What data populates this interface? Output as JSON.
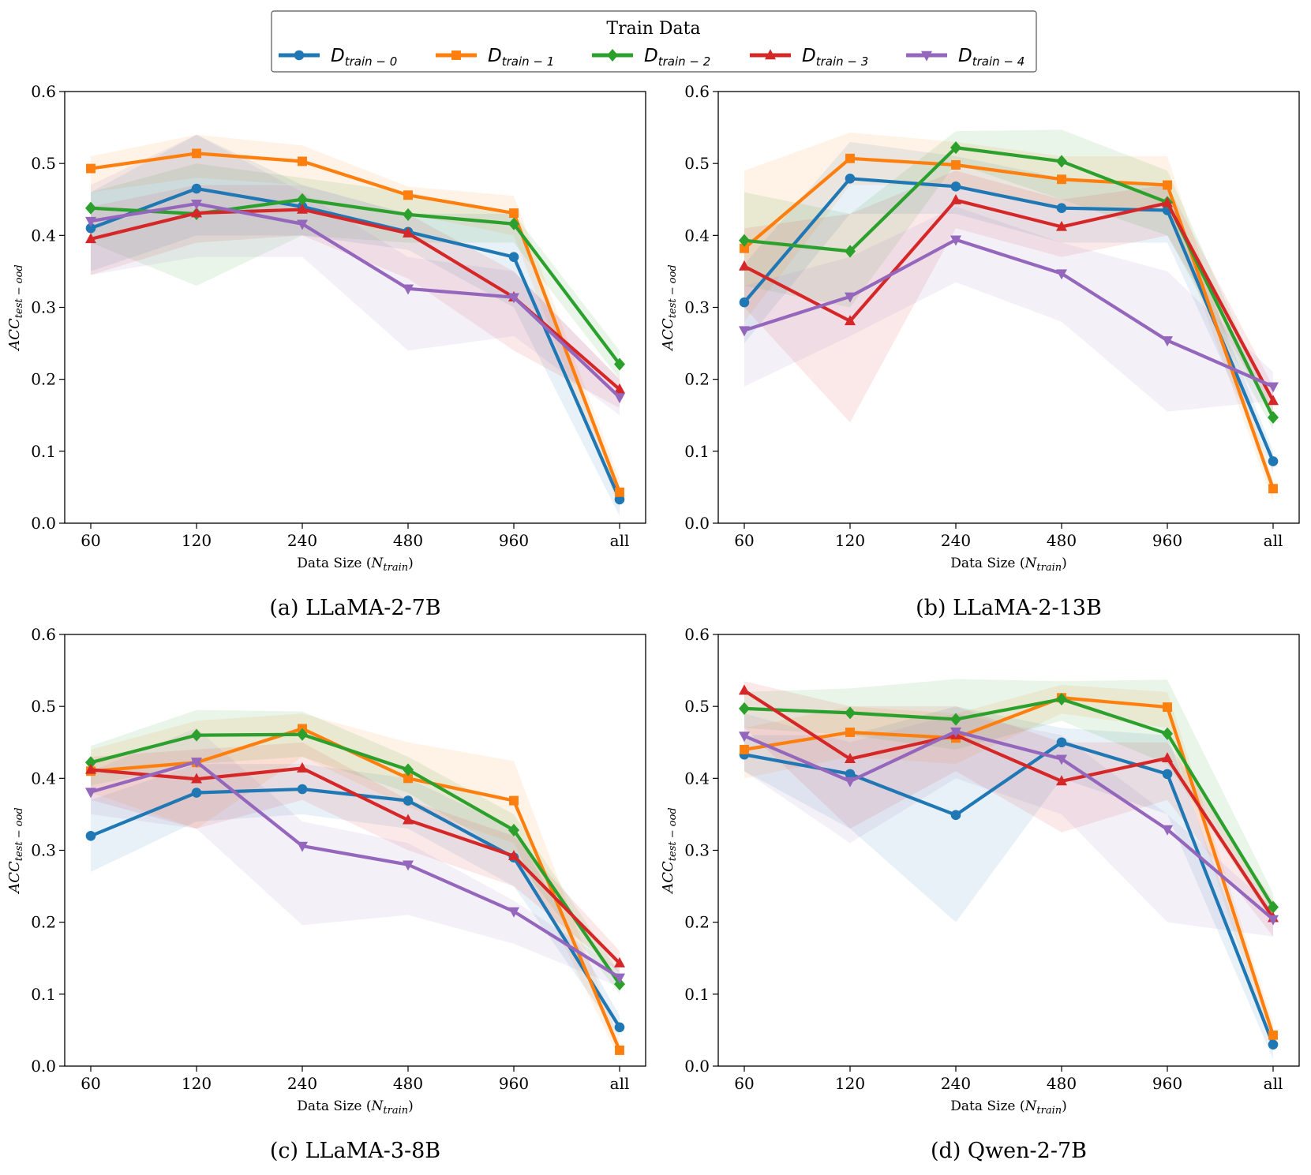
{
  "legend": {
    "title": "Train Data",
    "entries": [
      {
        "main": "D",
        "sub": "train − 0",
        "color": "#1f77b4",
        "marker": "circle"
      },
      {
        "main": "D",
        "sub": "train − 1",
        "color": "#ff7f0e",
        "marker": "square"
      },
      {
        "main": "D",
        "sub": "train − 2",
        "color": "#2ca02c",
        "marker": "diamond"
      },
      {
        "main": "D",
        "sub": "train − 3",
        "color": "#d62728",
        "marker": "triangle-up"
      },
      {
        "main": "D",
        "sub": "train − 4",
        "color": "#9467bd",
        "marker": "triangle-down"
      }
    ]
  },
  "chart_data": [
    {
      "type": "line",
      "title": "(a) LLaMA-2-7B",
      "xlabel": {
        "main": "Data Size (",
        "italic": "N",
        "sub": "train",
        "tail": ")"
      },
      "ylabel": {
        "main": "ACC",
        "sub": "test − ood"
      },
      "categories": [
        "60",
        "120",
        "240",
        "480",
        "960",
        "all"
      ],
      "ylim": [
        0,
        0.6
      ],
      "yticks": [
        "0.0",
        "0.1",
        "0.2",
        "0.3",
        "0.4",
        "0.5",
        "0.6"
      ],
      "series": [
        {
          "name": "D train-0",
          "values": [
            0.41,
            0.465,
            0.44,
            0.405,
            0.37,
            0.033
          ],
          "lower": [
            0.35,
            0.4,
            0.4,
            0.38,
            0.3,
            0.01
          ],
          "upper": [
            0.46,
            0.54,
            0.47,
            0.43,
            0.43,
            0.05
          ]
        },
        {
          "name": "D train-1",
          "values": [
            0.493,
            0.514,
            0.503,
            0.456,
            0.431,
            0.043
          ],
          "lower": [
            0.46,
            0.48,
            0.47,
            0.43,
            0.4,
            0.02
          ],
          "upper": [
            0.51,
            0.54,
            0.525,
            0.468,
            0.455,
            0.06
          ]
        },
        {
          "name": "D train-2",
          "values": [
            0.438,
            0.43,
            0.45,
            0.429,
            0.416,
            0.221
          ],
          "lower": [
            0.39,
            0.33,
            0.4,
            0.39,
            0.39,
            0.2
          ],
          "upper": [
            0.46,
            0.5,
            0.48,
            0.46,
            0.43,
            0.24
          ]
        },
        {
          "name": "D train-3",
          "values": [
            0.395,
            0.431,
            0.436,
            0.403,
            0.314,
            0.186
          ],
          "lower": [
            0.345,
            0.39,
            0.4,
            0.34,
            0.24,
            0.16
          ],
          "upper": [
            0.44,
            0.47,
            0.47,
            0.43,
            0.35,
            0.2
          ]
        },
        {
          "name": "D train-4",
          "values": [
            0.42,
            0.444,
            0.416,
            0.326,
            0.314,
            0.175
          ],
          "lower": [
            0.345,
            0.37,
            0.37,
            0.24,
            0.26,
            0.15
          ],
          "upper": [
            0.47,
            0.54,
            0.46,
            0.37,
            0.35,
            0.2
          ]
        }
      ]
    },
    {
      "type": "line",
      "title": "(b) LLaMA-2-13B",
      "xlabel": {
        "main": "Data Size (",
        "italic": "N",
        "sub": "train",
        "tail": ")"
      },
      "ylabel": {
        "main": "ACC",
        "sub": "test − ood"
      },
      "categories": [
        "60",
        "120",
        "240",
        "480",
        "960",
        "all"
      ],
      "ylim": [
        0,
        0.6
      ],
      "yticks": [
        "0.0",
        "0.1",
        "0.2",
        "0.3",
        "0.4",
        "0.5",
        "0.6"
      ],
      "series": [
        {
          "name": "D train-0",
          "values": [
            0.307,
            0.479,
            0.468,
            0.438,
            0.435,
            0.086
          ],
          "lower": [
            0.25,
            0.43,
            0.43,
            0.39,
            0.39,
            0.07
          ],
          "upper": [
            0.36,
            0.53,
            0.51,
            0.48,
            0.47,
            0.1
          ]
        },
        {
          "name": "D train-1",
          "values": [
            0.382,
            0.507,
            0.498,
            0.478,
            0.47,
            0.048
          ],
          "lower": [
            0.28,
            0.47,
            0.47,
            0.44,
            0.44,
            0.03
          ],
          "upper": [
            0.49,
            0.543,
            0.53,
            0.51,
            0.51,
            0.06
          ]
        },
        {
          "name": "D train-2",
          "values": [
            0.393,
            0.378,
            0.522,
            0.503,
            0.446,
            0.147
          ],
          "lower": [
            0.33,
            0.3,
            0.5,
            0.45,
            0.4,
            0.13
          ],
          "upper": [
            0.46,
            0.43,
            0.545,
            0.547,
            0.49,
            0.16
          ]
        },
        {
          "name": "D train-3",
          "values": [
            0.357,
            0.281,
            0.449,
            0.412,
            0.445,
            0.17
          ],
          "lower": [
            0.3,
            0.14,
            0.41,
            0.37,
            0.4,
            0.15
          ],
          "upper": [
            0.41,
            0.43,
            0.49,
            0.45,
            0.47,
            0.19
          ]
        },
        {
          "name": "D train-4",
          "values": [
            0.268,
            0.315,
            0.394,
            0.347,
            0.254,
            0.19
          ],
          "lower": [
            0.19,
            0.26,
            0.335,
            0.28,
            0.155,
            0.17
          ],
          "upper": [
            0.33,
            0.37,
            0.44,
            0.39,
            0.35,
            0.21
          ]
        }
      ]
    },
    {
      "type": "line",
      "title": "(c) LLaMA-3-8B",
      "xlabel": {
        "main": "Data Size (",
        "italic": "N",
        "sub": "train",
        "tail": ")"
      },
      "ylabel": {
        "main": "ACC",
        "sub": "test − ood"
      },
      "categories": [
        "60",
        "120",
        "240",
        "480",
        "960",
        "all"
      ],
      "ylim": [
        0,
        0.6
      ],
      "yticks": [
        "0.0",
        "0.1",
        "0.2",
        "0.3",
        "0.4",
        "0.5",
        "0.6"
      ],
      "series": [
        {
          "name": "D train-0",
          "values": [
            0.32,
            0.38,
            0.385,
            0.369,
            0.29,
            0.054
          ],
          "lower": [
            0.27,
            0.34,
            0.35,
            0.33,
            0.25,
            0.04
          ],
          "upper": [
            0.37,
            0.42,
            0.42,
            0.4,
            0.33,
            0.07
          ]
        },
        {
          "name": "D train-1",
          "values": [
            0.41,
            0.422,
            0.469,
            0.4,
            0.369,
            0.022
          ],
          "lower": [
            0.38,
            0.33,
            0.43,
            0.36,
            0.31,
            0.01
          ],
          "upper": [
            0.44,
            0.48,
            0.49,
            0.45,
            0.424,
            0.035
          ]
        },
        {
          "name": "D train-2",
          "values": [
            0.422,
            0.46,
            0.461,
            0.412,
            0.328,
            0.114
          ],
          "lower": [
            0.39,
            0.42,
            0.43,
            0.38,
            0.29,
            0.1
          ],
          "upper": [
            0.445,
            0.495,
            0.493,
            0.43,
            0.35,
            0.13
          ]
        },
        {
          "name": "D train-3",
          "values": [
            0.412,
            0.399,
            0.414,
            0.342,
            0.292,
            0.143
          ],
          "lower": [
            0.37,
            0.33,
            0.37,
            0.3,
            0.25,
            0.13
          ],
          "upper": [
            0.43,
            0.44,
            0.45,
            0.37,
            0.32,
            0.16
          ]
        },
        {
          "name": "D train-4",
          "values": [
            0.381,
            0.423,
            0.306,
            0.28,
            0.215,
            0.123
          ],
          "lower": [
            0.35,
            0.33,
            0.196,
            0.21,
            0.17,
            0.11
          ],
          "upper": [
            0.41,
            0.47,
            0.34,
            0.31,
            0.23,
            0.135
          ]
        }
      ]
    },
    {
      "type": "line",
      "title": "(d) Qwen-2-7B",
      "xlabel": {
        "main": "Data Size (",
        "italic": "N",
        "sub": "train",
        "tail": ")"
      },
      "ylabel": {
        "main": "ACC",
        "sub": "test − ood"
      },
      "categories": [
        "60",
        "120",
        "240",
        "480",
        "960",
        "all"
      ],
      "ylim": [
        0,
        0.6
      ],
      "yticks": [
        "0.0",
        "0.1",
        "0.2",
        "0.3",
        "0.4",
        "0.5",
        "0.6"
      ],
      "series": [
        {
          "name": "D train-0",
          "values": [
            0.433,
            0.406,
            0.349,
            0.45,
            0.406,
            0.03
          ],
          "lower": [
            0.41,
            0.33,
            0.2,
            0.4,
            0.35,
            0.01
          ],
          "upper": [
            0.46,
            0.46,
            0.5,
            0.47,
            0.46,
            0.05
          ]
        },
        {
          "name": "D train-1",
          "values": [
            0.44,
            0.464,
            0.456,
            0.512,
            0.499,
            0.043
          ],
          "lower": [
            0.4,
            0.43,
            0.42,
            0.49,
            0.47,
            0.02
          ],
          "upper": [
            0.47,
            0.5,
            0.49,
            0.53,
            0.52,
            0.06
          ]
        },
        {
          "name": "D train-2",
          "values": [
            0.497,
            0.491,
            0.482,
            0.51,
            0.462,
            0.221
          ],
          "lower": [
            0.47,
            0.46,
            0.44,
            0.48,
            0.42,
            0.2
          ],
          "upper": [
            0.52,
            0.525,
            0.538,
            0.535,
            0.537,
            0.24
          ]
        },
        {
          "name": "D train-3",
          "values": [
            0.522,
            0.427,
            0.46,
            0.396,
            0.428,
            0.206
          ],
          "lower": [
            0.47,
            0.33,
            0.41,
            0.325,
            0.37,
            0.18
          ],
          "upper": [
            0.535,
            0.5,
            0.5,
            0.45,
            0.45,
            0.23
          ]
        },
        {
          "name": "D train-4",
          "values": [
            0.459,
            0.396,
            0.465,
            0.427,
            0.329,
            0.204
          ],
          "lower": [
            0.41,
            0.31,
            0.4,
            0.35,
            0.2,
            0.18
          ],
          "upper": [
            0.49,
            0.45,
            0.49,
            0.46,
            0.35,
            0.22
          ]
        }
      ]
    }
  ]
}
